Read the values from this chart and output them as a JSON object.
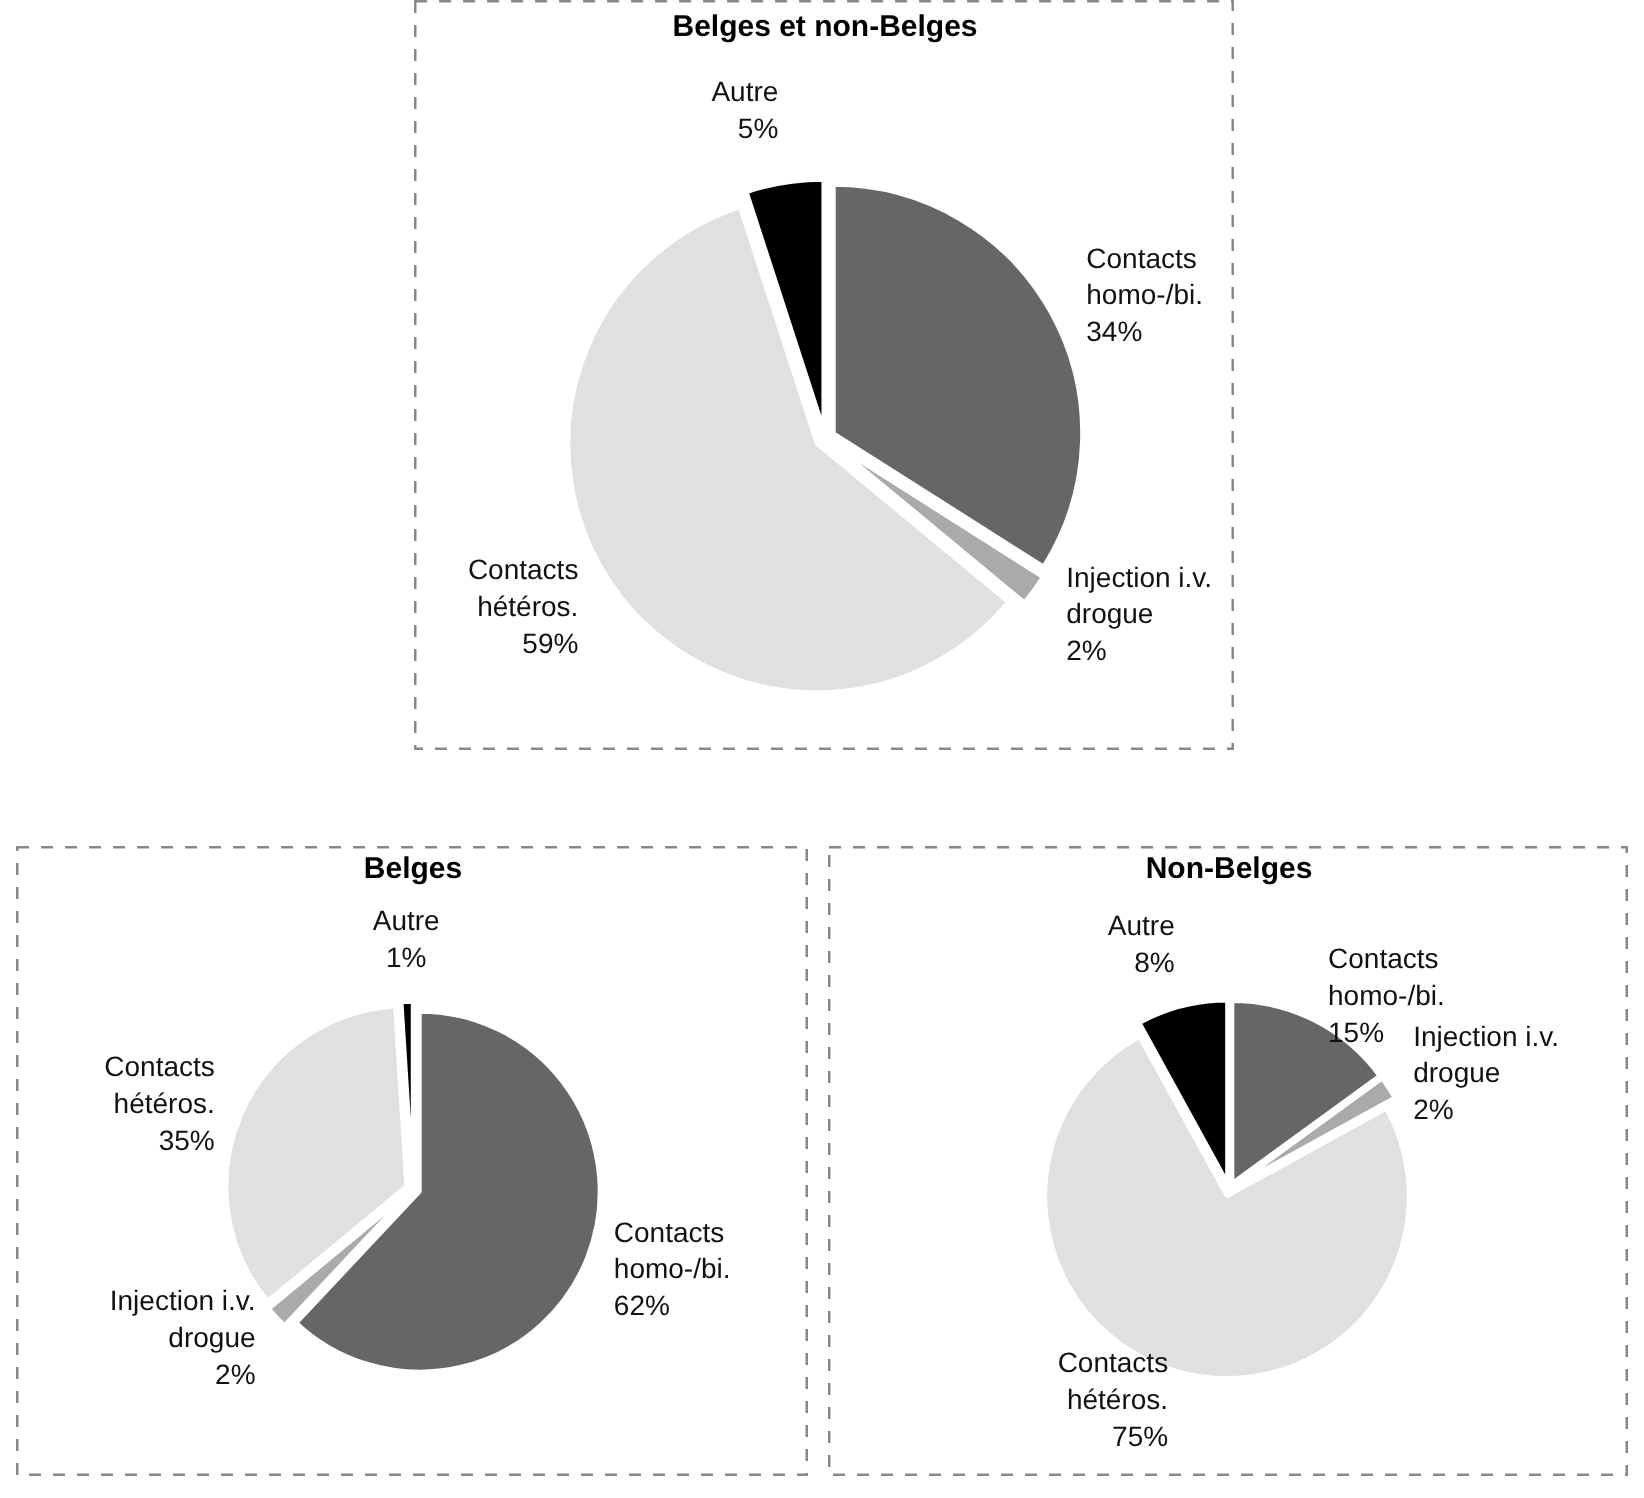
{
  "chart_data": [
    {
      "type": "pie",
      "title": "Belges et non-Belges",
      "categories": [
        "Contacts homo-/bi.",
        "Injection i.v. drogue",
        "Contacts hétéros.",
        "Autre"
      ],
      "values": [
        34,
        2,
        59,
        5
      ],
      "value_labels": [
        "34%",
        "2%",
        "59%",
        "5%"
      ],
      "colors": [
        "#666666",
        "#aaaaaa",
        "#e0e0e0",
        "#000000"
      ]
    },
    {
      "type": "pie",
      "title": "Belges",
      "categories": [
        "Contacts homo-/bi.",
        "Injection i.v. drogue",
        "Contacts hétéros.",
        "Autre"
      ],
      "values": [
        62,
        2,
        35,
        1
      ],
      "value_labels": [
        "62%",
        "2%",
        "35%",
        "1%"
      ],
      "colors": [
        "#666666",
        "#aaaaaa",
        "#e0e0e0",
        "#000000"
      ]
    },
    {
      "type": "pie",
      "title": "Non-Belges",
      "categories": [
        "Contacts homo-/bi.",
        "Injection i.v. drogue",
        "Contacts hétéros.",
        "Autre"
      ],
      "values": [
        15,
        2,
        75,
        8
      ],
      "value_labels": [
        "15%",
        "2%",
        "75%",
        "8%"
      ],
      "colors": [
        "#666666",
        "#aaaaaa",
        "#e0e0e0",
        "#000000"
      ]
    }
  ]
}
